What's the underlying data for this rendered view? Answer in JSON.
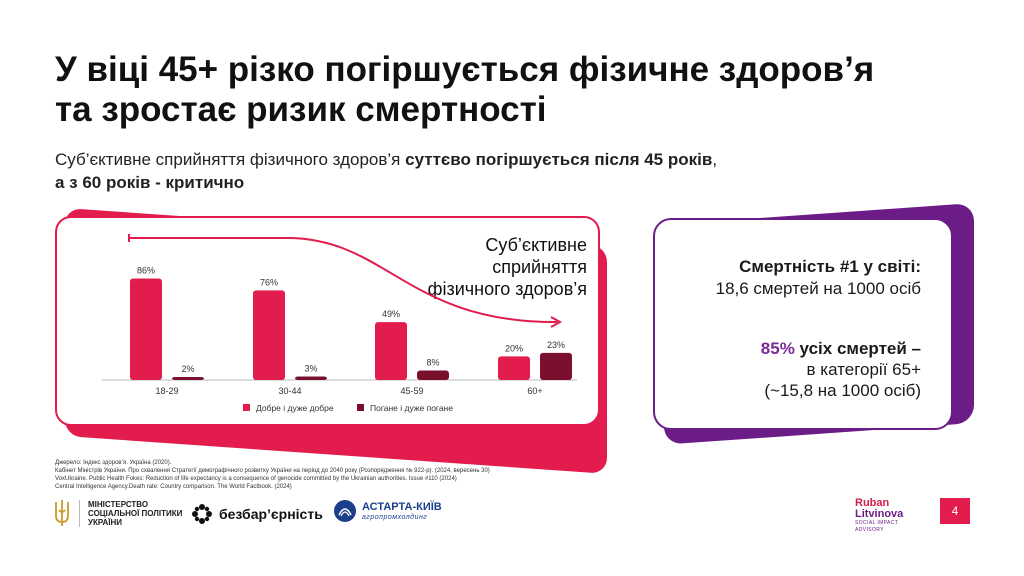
{
  "title": {
    "line1": "У віці 45+ різко погіршується фізичне здоров’я",
    "line2": "та зростає ризик смертності"
  },
  "subtitle": {
    "part1": "Суб’єктивне сприйняття фізичного здоров’я ",
    "bold1": "суттєво погіршується після 45 років",
    "part2": ",",
    "bold2": "а з 60 років - критично"
  },
  "chart_heading": {
    "line1": "Суб’єктивне сприйняття",
    "line2": "фізичного здоров’я"
  },
  "chart_data": {
    "type": "bar",
    "title": "Суб’єктивне сприйняття фізичного здоров’я",
    "categories": [
      "18-29",
      "30-44",
      "45-59",
      "60+"
    ],
    "series": [
      {
        "name": "Добре і дуже добре",
        "values": [
          86,
          76,
          49,
          20
        ],
        "labels": [
          "86%",
          "76%",
          "49%",
          "20%"
        ]
      },
      {
        "name": "Погане і дуже погане",
        "values": [
          2,
          3,
          8,
          23
        ],
        "labels": [
          "2%",
          "3%",
          "8%",
          "23%"
        ]
      }
    ],
    "ylim": [
      0,
      100
    ],
    "legend_position": "bottom",
    "colors": [
      "#e21c4d",
      "#7a0f2e"
    ],
    "trend_arrow": true
  },
  "stats": {
    "stat1_bold": "Смертність #1 у світі:",
    "stat1_text": "18,6 смертей на 1000 осіб",
    "stat2_accent": "85%",
    "stat2_bold": " усіх смертей –",
    "stat2_line2": "в категорії 65+",
    "stat2_line3": "(~15,8 на 1000 осіб)"
  },
  "sources": [
    "Джерело:  Індекс здоров’я. Україна (2020).",
    "Кабінет Міністрів України. Про схвалення Стратегії демографічного розвитку України на період до 2040 року (Розпорядження № 922-р). (2024, вересень 30)",
    "VoxUkraine. Public Health Fokes: Reduction of life expectancy is a consequence of genocide committed by the Ukrainian authorities. Issue #110 (2024)",
    "Central Intelligence Agency.Death rate: Country comparison. The World Factbook. (2024)"
  ],
  "logos": {
    "ministry": [
      "МІНІСТЕРСТВО",
      "СОЦІАЛЬНОЇ ПОЛІТИКИ",
      "УКРАЇНИ"
    ],
    "bezb": "безбар’єрність",
    "astarta_name": "АСТАРТА-КИЇВ",
    "astarta_sub": "агропромхолдинг",
    "rl_line1": "Ruban",
    "rl_line2": "Litvinova",
    "rl_sub": "SOCIAL IMPACT ADVISORY"
  },
  "page_number": "4",
  "colors": {
    "accent_red": "#e21c4d",
    "dark_red": "#7a0f2e",
    "purple": "#6c1c86"
  }
}
